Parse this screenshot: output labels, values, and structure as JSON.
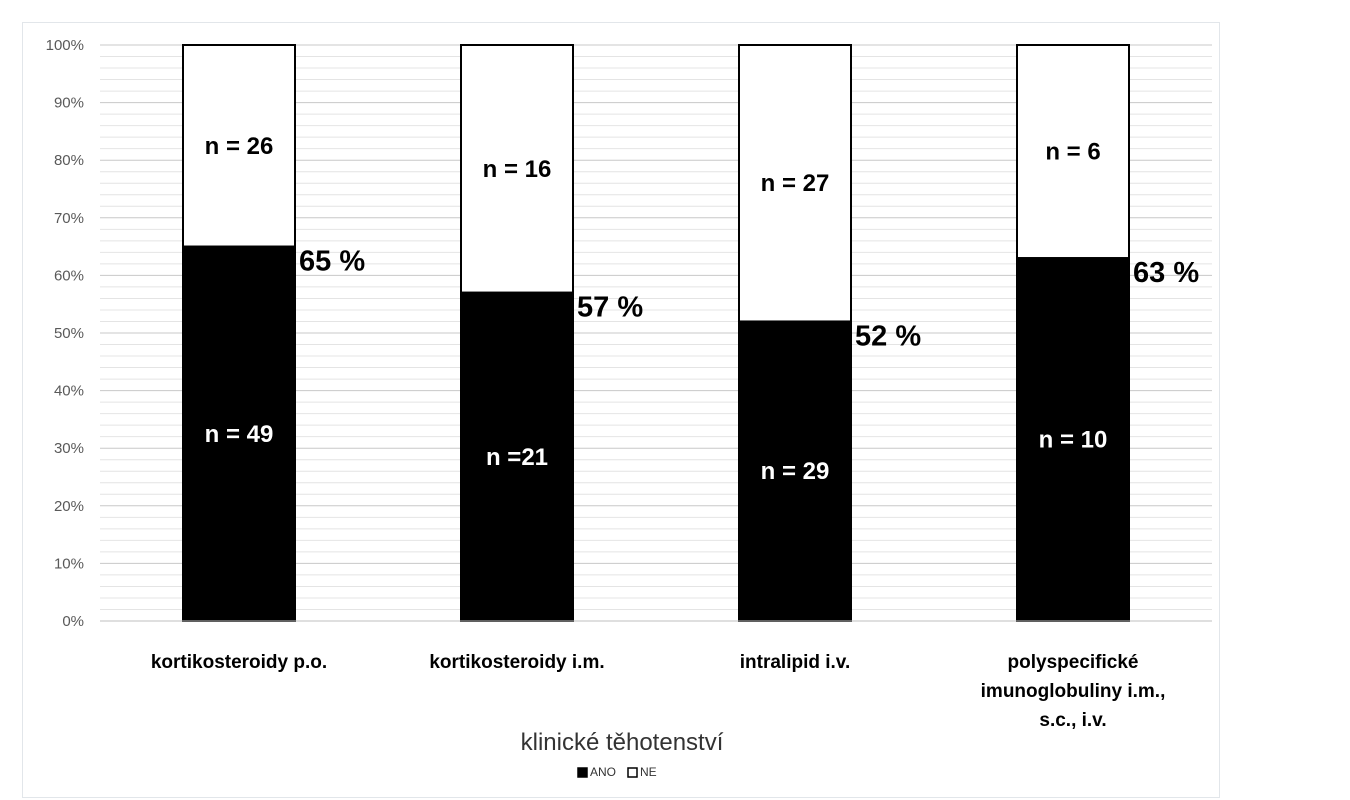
{
  "chart_data": {
    "type": "bar",
    "stacked": true,
    "percent_stacked": true,
    "categories": [
      [
        "kortikosteroidy p.o."
      ],
      [
        "kortikosteroidy i.m."
      ],
      [
        "intralipid i.v."
      ],
      [
        "polyspecifické",
        "imunoglobuliny i.m.,",
        "s.c., i.v."
      ]
    ],
    "series": [
      {
        "name": "ANO",
        "color": "#000000",
        "values": [
          65,
          57,
          52,
          63
        ],
        "counts": [
          49,
          21,
          29,
          10
        ],
        "labels": [
          "n = 49",
          "n =21",
          "n = 29",
          "n = 10"
        ]
      },
      {
        "name": "NE",
        "color": "#ffffff",
        "values": [
          35,
          43,
          48,
          37
        ],
        "counts": [
          26,
          16,
          27,
          6
        ],
        "labels": [
          "n = 26",
          "n = 16",
          "n = 27",
          "n = 6"
        ]
      }
    ],
    "percent_labels": [
      "65 %",
      "57 %",
      "52 %",
      "63 %"
    ],
    "xlabel": "klinické těhotenství",
    "ylabel": "",
    "ylim": [
      0,
      100
    ],
    "yticks": [
      "0%",
      "10%",
      "20%",
      "30%",
      "40%",
      "50%",
      "60%",
      "70%",
      "80%",
      "90%",
      "100%"
    ],
    "grid": true,
    "legend_position": "bottom"
  }
}
